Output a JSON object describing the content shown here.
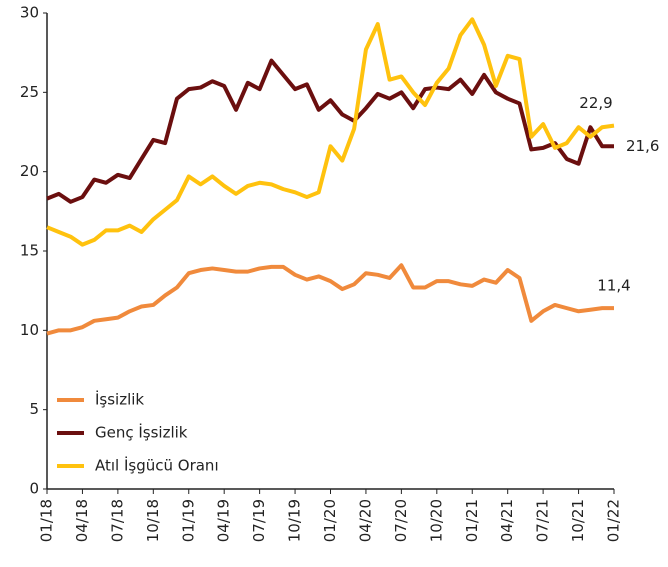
{
  "chart_data": {
    "type": "line",
    "categories": [
      "01/18",
      null,
      null,
      "04/18",
      null,
      null,
      "07/18",
      null,
      null,
      "10/18",
      null,
      null,
      "01/19",
      null,
      null,
      "04/19",
      null,
      null,
      "07/19",
      null,
      null,
      "10/19",
      null,
      null,
      "01/20",
      null,
      null,
      "04/20",
      null,
      null,
      "07/20",
      null,
      null,
      "10/20",
      null,
      null,
      "01/21",
      null,
      null,
      "04/21",
      null,
      null,
      "07/21",
      null,
      null,
      "10/21",
      null,
      null,
      "01/22"
    ],
    "series": [
      {
        "name": "İşsizlik",
        "color": "#f08a3c",
        "values": [
          9.8,
          10.0,
          10.0,
          10.2,
          10.6,
          10.7,
          10.8,
          11.2,
          11.5,
          11.6,
          12.2,
          12.7,
          13.6,
          13.8,
          13.9,
          13.8,
          13.7,
          13.7,
          13.9,
          14.0,
          14.0,
          13.5,
          13.2,
          13.4,
          13.1,
          12.6,
          12.9,
          13.6,
          13.5,
          13.3,
          14.1,
          12.7,
          12.7,
          13.1,
          13.1,
          12.9,
          12.8,
          13.2,
          13.0,
          13.8,
          13.3,
          10.6,
          11.2,
          11.6,
          11.4,
          11.2,
          11.3,
          11.4,
          11.4
        ],
        "value_labels": [
          null,
          null,
          null,
          null,
          null,
          null,
          null,
          null,
          null,
          null,
          null,
          null,
          null,
          null,
          null,
          null,
          null,
          null,
          null,
          null,
          null,
          null,
          null,
          null,
          null,
          null,
          null,
          null,
          null,
          null,
          null,
          null,
          null,
          null,
          null,
          null,
          null,
          null,
          null,
          null,
          null,
          null,
          null,
          null,
          null,
          null,
          null,
          null,
          "11,4"
        ]
      },
      {
        "name": "Genç İşsizlik",
        "color": "#6b0f0f",
        "values": [
          18.3,
          18.6,
          18.1,
          18.4,
          19.5,
          19.3,
          19.8,
          19.6,
          20.8,
          22.0,
          21.8,
          24.6,
          25.2,
          25.3,
          25.7,
          25.4,
          23.9,
          25.6,
          25.2,
          27.0,
          26.1,
          25.2,
          25.5,
          23.9,
          24.5,
          23.6,
          23.2,
          24.0,
          24.9,
          24.6,
          25.0,
          24.0,
          25.2,
          25.3,
          25.2,
          25.8,
          24.9,
          26.1,
          25.0,
          24.6,
          24.3,
          21.4,
          21.5,
          21.8,
          20.8,
          20.5,
          22.8,
          21.6,
          21.6
        ],
        "value_labels": [
          null,
          null,
          null,
          null,
          null,
          null,
          null,
          null,
          null,
          null,
          null,
          null,
          null,
          null,
          null,
          null,
          null,
          null,
          null,
          null,
          null,
          null,
          null,
          null,
          null,
          null,
          null,
          null,
          null,
          null,
          null,
          null,
          null,
          null,
          null,
          null,
          null,
          null,
          null,
          null,
          null,
          null,
          null,
          null,
          null,
          null,
          null,
          null,
          "21,6"
        ]
      },
      {
        "name": "Atıl İşgücü Oranı",
        "color": "#ffc20e",
        "values": [
          16.5,
          16.2,
          15.9,
          15.4,
          15.7,
          16.3,
          16.3,
          16.6,
          16.2,
          17.0,
          17.6,
          18.2,
          19.7,
          19.2,
          19.7,
          19.1,
          18.6,
          19.1,
          19.3,
          19.2,
          18.9,
          18.7,
          18.4,
          18.7,
          21.6,
          20.7,
          22.7,
          27.7,
          29.3,
          25.8,
          26.0,
          25.0,
          24.2,
          25.6,
          26.5,
          28.6,
          29.6,
          28.0,
          25.4,
          27.3,
          27.1,
          22.2,
          23.0,
          21.5,
          21.8,
          22.8,
          22.2,
          22.8,
          22.9
        ],
        "value_labels": [
          null,
          null,
          null,
          null,
          null,
          null,
          null,
          null,
          null,
          null,
          null,
          null,
          null,
          null,
          null,
          null,
          null,
          null,
          null,
          null,
          null,
          null,
          null,
          null,
          null,
          null,
          null,
          null,
          null,
          null,
          null,
          null,
          null,
          null,
          null,
          null,
          null,
          null,
          null,
          null,
          null,
          null,
          null,
          null,
          null,
          null,
          null,
          null,
          "22,9"
        ]
      }
    ],
    "ylim": [
      0,
      30
    ],
    "yticks": [
      0,
      5,
      10,
      15,
      20,
      25,
      30
    ],
    "legend": "lower left"
  }
}
